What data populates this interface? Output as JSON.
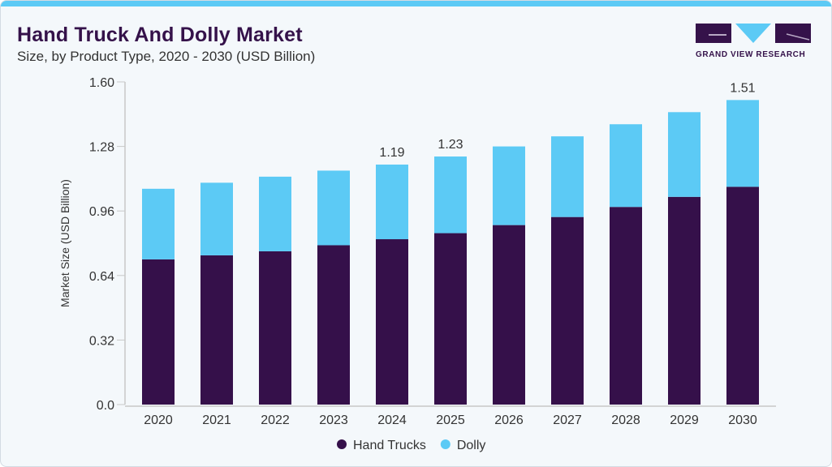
{
  "title": "Hand Truck And Dolly Market",
  "subtitle": "Size, by Product Type, 2020 - 2030 (USD Billion)",
  "logo": {
    "text": "GRAND VIEW RESEARCH"
  },
  "colors": {
    "hand_trucks": "#35104a",
    "dolly": "#5ccaf5",
    "accent": "#5ccaf5"
  },
  "chart_data": {
    "type": "bar",
    "stacked": true,
    "ylabel": "Market Size (USD Billion)",
    "xlabel": "",
    "ylim": [
      0,
      1.6
    ],
    "yticks": [
      "0.0",
      "0.32",
      "0.64",
      "0.96",
      "1.28",
      "1.60"
    ],
    "categories": [
      "2020",
      "2021",
      "2022",
      "2023",
      "2024",
      "2025",
      "2026",
      "2027",
      "2028",
      "2029",
      "2030"
    ],
    "series": [
      {
        "name": "Hand Trucks",
        "values": [
          0.72,
          0.74,
          0.76,
          0.79,
          0.82,
          0.85,
          0.89,
          0.93,
          0.98,
          1.03,
          1.08
        ]
      },
      {
        "name": "Dolly",
        "values": [
          0.35,
          0.36,
          0.37,
          0.37,
          0.37,
          0.38,
          0.39,
          0.4,
          0.41,
          0.42,
          0.43
        ]
      }
    ],
    "data_labels": {
      "2024": "1.19",
      "2025": "1.23",
      "2030": "1.51"
    },
    "legend_position": "bottom",
    "grid": false
  }
}
